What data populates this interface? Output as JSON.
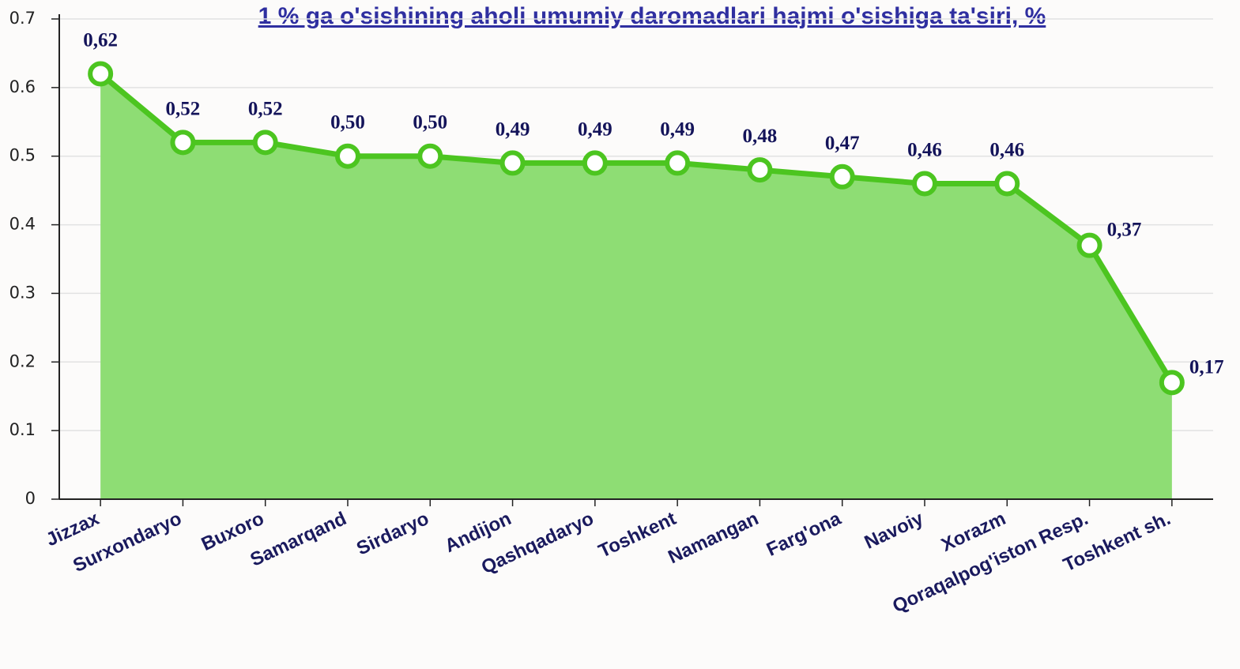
{
  "chart_data": {
    "type": "area",
    "title": "1 % ga o'sishining aholi umumiy daromadlari hajmi o'sishiga ta'siri, %",
    "categories": [
      "Jizzax",
      "Surxondaryo",
      "Buxoro",
      "Samarqand",
      "Sirdaryo",
      "Andijon",
      "Qashqadaryo",
      "Toshkent",
      "Namangan",
      "Farg'ona",
      "Navoiy",
      "Xorazm",
      "Qoraqalpog'iston Resp.",
      "Toshkent sh."
    ],
    "values": [
      0.62,
      0.52,
      0.52,
      0.5,
      0.5,
      0.49,
      0.49,
      0.49,
      0.48,
      0.47,
      0.46,
      0.46,
      0.37,
      0.17
    ],
    "value_labels": [
      "0,62",
      "0,52",
      "0,52",
      "0,50",
      "0,50",
      "0,49",
      "0,49",
      "0,49",
      "0,48",
      "0,47",
      "0,46",
      "0,46",
      "0,37",
      "0,17"
    ],
    "color": "#4cc520",
    "fill_color": "#8edd74",
    "ylim": [
      0,
      0.7
    ],
    "yticks": [
      0,
      0.1,
      0.2,
      0.3,
      0.4,
      0.5,
      0.6,
      0.7
    ],
    "grid": true
  }
}
